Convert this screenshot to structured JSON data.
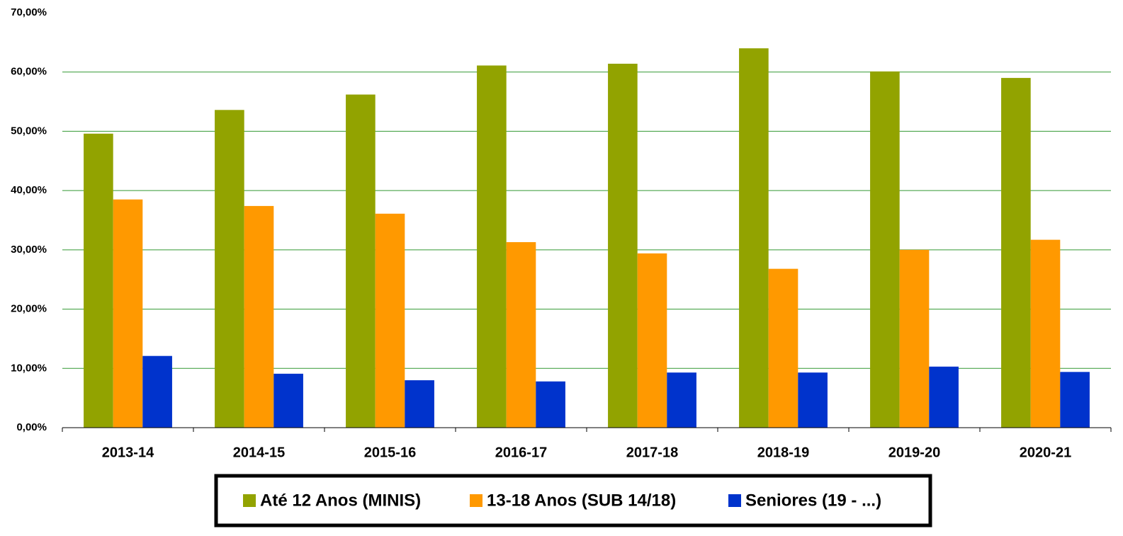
{
  "chart_data": {
    "type": "bar",
    "categories": [
      "2013-14",
      "2014-15",
      "2015-16",
      "2016-17",
      "2017-18",
      "2018-19",
      "2019-20",
      "2020-21"
    ],
    "series": [
      {
        "name": "Até 12 Anos (MINIS)",
        "color": "#92a300",
        "values": [
          49.6,
          53.6,
          56.2,
          61.1,
          61.4,
          64.0,
          60.1,
          59.0
        ]
      },
      {
        "name": "13-18 Anos (SUB 14/18)",
        "color": "#ff9900",
        "values": [
          38.5,
          37.4,
          36.1,
          31.3,
          29.4,
          26.8,
          30.0,
          31.7
        ]
      },
      {
        "name": "Seniores (19 - ...)",
        "color": "#0033cc",
        "values": [
          12.1,
          9.1,
          8.0,
          7.8,
          9.3,
          9.3,
          10.3,
          9.4
        ]
      }
    ],
    "ylim": [
      0,
      70
    ],
    "yticks": [
      {
        "value": 0,
        "label": "0,00%"
      },
      {
        "value": 10,
        "label": "10,00%"
      },
      {
        "value": 20,
        "label": "20,00%"
      },
      {
        "value": 30,
        "label": "30,00%"
      },
      {
        "value": 40,
        "label": "40,00%"
      },
      {
        "value": 50,
        "label": "50,00%"
      },
      {
        "value": 60,
        "label": "60,00%"
      },
      {
        "value": 70,
        "label": "70,00%"
      }
    ],
    "grid": true,
    "legend": "bottom"
  }
}
